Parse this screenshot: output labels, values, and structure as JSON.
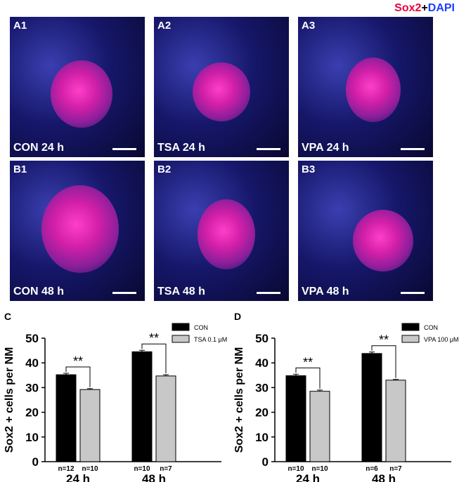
{
  "header": {
    "marker1": "Sox2",
    "plus": "+",
    "marker2": "DAPI"
  },
  "panels": [
    {
      "id": "A1",
      "condition": "CON 24 h"
    },
    {
      "id": "A2",
      "condition": "TSA 24 h"
    },
    {
      "id": "A3",
      "condition": "VPA 24 h"
    },
    {
      "id": "B1",
      "condition": "CON 48 h"
    },
    {
      "id": "B2",
      "condition": "TSA 48 h"
    },
    {
      "id": "B3",
      "condition": "VPA 48 h"
    }
  ],
  "colors": {
    "con": "#000000",
    "treat": "#c8c8c8",
    "sox2": "#e8003d",
    "dapi": "#1f3fff"
  },
  "chart_data": [
    {
      "panel": "C",
      "type": "bar",
      "categories": [
        "24 h",
        "48 h"
      ],
      "series": [
        {
          "name": "CON",
          "values": [
            35.2,
            44.5
          ],
          "errors": [
            0.6,
            0.6
          ],
          "n": [
            "n=12",
            "n=10"
          ]
        },
        {
          "name": "TSA 0.1 μM",
          "values": [
            29.2,
            34.7
          ],
          "errors": [
            0.4,
            0.5
          ],
          "n": [
            "n=10",
            "n=7"
          ]
        }
      ],
      "significance": [
        "**",
        "**"
      ],
      "ylabel": "Sox2 + cells per NM",
      "ylim": [
        0,
        50
      ],
      "yticks": [
        "0",
        "10",
        "20",
        "30",
        "40",
        "50"
      ],
      "legend": "top-right",
      "grid": false
    },
    {
      "panel": "D",
      "type": "bar",
      "categories": [
        "24 h",
        "48 h"
      ],
      "series": [
        {
          "name": "CON",
          "values": [
            34.8,
            43.8
          ],
          "errors": [
            0.6,
            0.6
          ],
          "n": [
            "n=10",
            "n=6"
          ]
        },
        {
          "name": "VPA 100 μM",
          "values": [
            28.5,
            33.0
          ],
          "errors": [
            0.5,
            0.3
          ],
          "n": [
            "n=10",
            "n=7"
          ]
        }
      ],
      "significance": [
        "**",
        "**"
      ],
      "ylabel": "Sox2 + cells per NM",
      "ylim": [
        0,
        50
      ],
      "yticks": [
        "0",
        "10",
        "20",
        "30",
        "40",
        "50"
      ],
      "legend": "top-right",
      "grid": false
    }
  ]
}
